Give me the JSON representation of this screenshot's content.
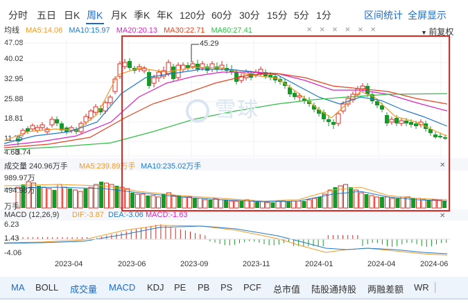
{
  "period_tabs": [
    "分时",
    "五日",
    "日K",
    "周K",
    "月K",
    "季K",
    "年K",
    "120分",
    "60分",
    "30分",
    "15分",
    "5分",
    "1分"
  ],
  "active_period": "周K",
  "top_actions": {
    "range_stats": "区间统计",
    "fullscreen": "全屏显示"
  },
  "ma_legend": {
    "title": "均线",
    "ma5": "MA5:14.06",
    "ma10": "MA10:15.97",
    "ma20": "MA20:20.13",
    "ma30": "MA30:22.71",
    "ma60": "MA60:27.41"
  },
  "adjust_mode": "前复权",
  "price_axis": [
    "47.08",
    "40.02",
    "32.95",
    "25.88",
    "18.81",
    "11.75",
    "4.68",
    "3.74"
  ],
  "high_marker": "45.29",
  "volume_legend": {
    "title": "成交量 240.96万手",
    "ma5": "MA5:239.89万手",
    "ma10": "MA10:235.02万手"
  },
  "volume_axis": [
    "989.97万",
    "494.98万",
    "万手"
  ],
  "macd_legend": {
    "title": "MACD (12,26,9)",
    "dif": "DIF:-3.87",
    "dea": "DEA:-3.06",
    "macd": "MACD:-1.63"
  },
  "macd_axis": [
    "6.23",
    "1.43",
    "-4.06"
  ],
  "x_dates": [
    "2023-04",
    "2023-06",
    "2023-09",
    "2023-11",
    "2024-01",
    "2024-04",
    "2024-06"
  ],
  "watermark": "雪球",
  "indicator_tabs": [
    "MA",
    "BOLL",
    "成交量",
    "MACD",
    "KDJ",
    "PE",
    "PB",
    "PS",
    "PCF",
    "总市值",
    "陆股通持股",
    "两融差额",
    "WR"
  ],
  "colors": {
    "up": "#e0241e",
    "down": "#139a29",
    "ma5": "#f29a25",
    "ma10": "#1f78c8",
    "ma20": "#d924c0",
    "ma30": "#e5421f",
    "ma60": "#2fbf45",
    "accent": "#1b6bc9"
  }
}
